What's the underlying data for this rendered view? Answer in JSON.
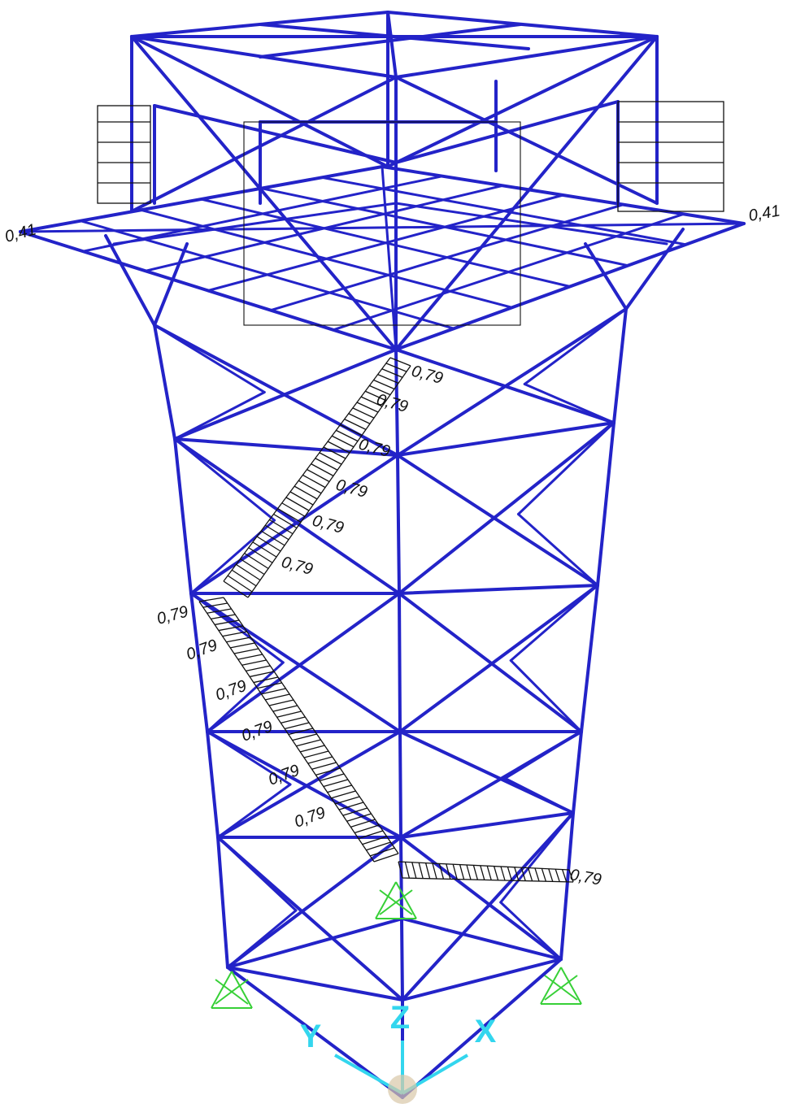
{
  "load_labels": [
    "0,41",
    "0,41",
    "0,79",
    "0,79",
    "0,79",
    "0,79",
    "0,79",
    "0,79",
    "0,79",
    "0,79",
    "0,79",
    "0,79",
    "0,79",
    "0,79",
    "0,79"
  ],
  "axes": {
    "x": "X",
    "y": "Y",
    "z": "Z"
  }
}
